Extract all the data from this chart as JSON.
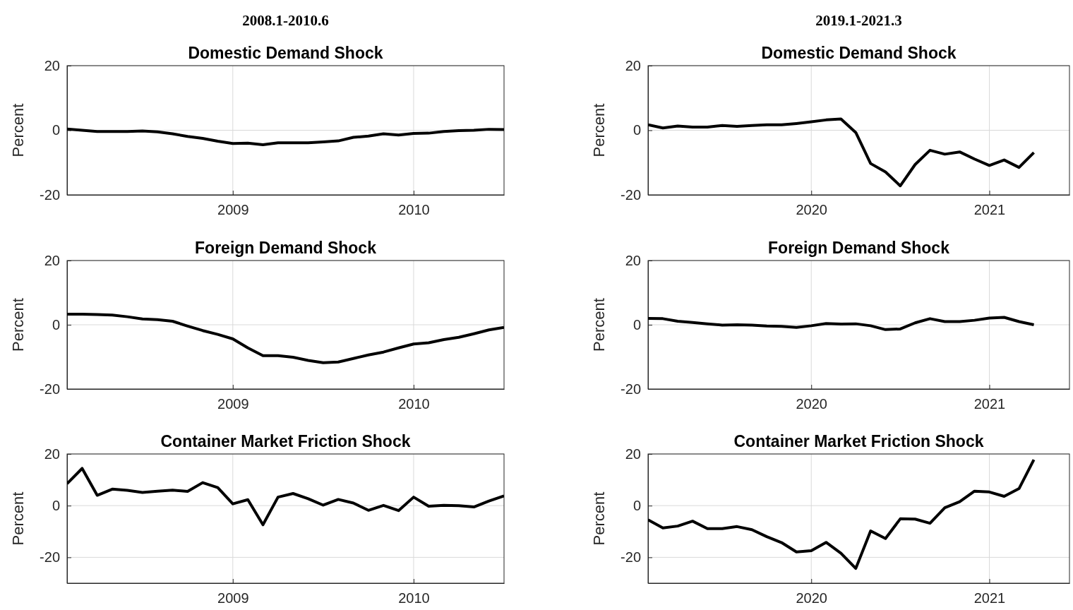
{
  "chart_data": [
    {
      "type": "line",
      "subtitle": "2008.1-2010.6",
      "title": "Domestic Demand Shock",
      "ylabel": "Percent",
      "x": [
        2008.0833,
        2008.1667,
        2008.25,
        2008.3333,
        2008.4167,
        2008.5,
        2008.5833,
        2008.6667,
        2008.75,
        2008.8333,
        2008.9167,
        2009,
        2009.0833,
        2009.1667,
        2009.25,
        2009.3333,
        2009.4167,
        2009.5,
        2009.5833,
        2009.6667,
        2009.75,
        2009.8333,
        2009.9167,
        2010,
        2010.0833,
        2010.1667,
        2010.25,
        2010.3333,
        2010.4167,
        2010.5
      ],
      "xlim": [
        2008.0833,
        2010.5
      ],
      "xticks": [
        2009,
        2010
      ],
      "ylim": [
        -20,
        20
      ],
      "yticks": [
        -20,
        0,
        20
      ],
      "grid": true,
      "series": [
        {
          "color": "#000000",
          "values": [
            0.4,
            0,
            -0.4,
            -0.4,
            -0.4,
            -0.2,
            -0.5,
            -1.1,
            -1.9,
            -2.5,
            -3.4,
            -4.1,
            -4.0,
            -4.5,
            -3.9,
            -3.9,
            -3.9,
            -3.6,
            -3.3,
            -2.2,
            -1.8,
            -1.1,
            -1.5,
            -1.0,
            -0.9,
            -0.4,
            -0.1,
            0,
            0.3,
            0.2
          ]
        }
      ]
    },
    {
      "type": "line",
      "subtitle": "2019.1-2021.3",
      "title": "Domestic Demand Shock",
      "ylabel": "Percent",
      "x": [
        2019.0833,
        2019.1667,
        2019.25,
        2019.3333,
        2019.4167,
        2019.5,
        2019.5833,
        2019.6667,
        2019.75,
        2019.8333,
        2019.9167,
        2020,
        2020.0833,
        2020.1667,
        2020.25,
        2020.3333,
        2020.4167,
        2020.5,
        2020.5833,
        2020.6667,
        2020.75,
        2020.8333,
        2020.9167,
        2021,
        2021.0833,
        2021.1667,
        2021.25
      ],
      "xlim": [
        2019.0833,
        2021.45
      ],
      "xticks": [
        2020,
        2021
      ],
      "ylim": [
        -20,
        20
      ],
      "yticks": [
        -20,
        0,
        20
      ],
      "grid": true,
      "series": [
        {
          "color": "#000000",
          "values": [
            1.7,
            0.7,
            1.3,
            1.0,
            1.0,
            1.5,
            1.2,
            1.5,
            1.7,
            1.7,
            2.1,
            2.6,
            3.2,
            3.5,
            -0.7,
            -10.3,
            -12.9,
            -17.2,
            -10.6,
            -6.2,
            -7.4,
            -6.7,
            -8.9,
            -10.9,
            -9.2,
            -11.5,
            -6.9
          ]
        }
      ]
    },
    {
      "type": "line",
      "title": "Foreign Demand Shock",
      "ylabel": "Percent",
      "x": [
        2008.0833,
        2008.1667,
        2008.25,
        2008.3333,
        2008.4167,
        2008.5,
        2008.5833,
        2008.6667,
        2008.75,
        2008.8333,
        2008.9167,
        2009,
        2009.0833,
        2009.1667,
        2009.25,
        2009.3333,
        2009.4167,
        2009.5,
        2009.5833,
        2009.6667,
        2009.75,
        2009.8333,
        2009.9167,
        2010,
        2010.0833,
        2010.1667,
        2010.25,
        2010.3333,
        2010.4167,
        2010.5
      ],
      "xlim": [
        2008.0833,
        2010.5
      ],
      "xticks": [
        2009,
        2010
      ],
      "ylim": [
        -20,
        20
      ],
      "yticks": [
        -20,
        0,
        20
      ],
      "grid": true,
      "series": [
        {
          "color": "#000000",
          "values": [
            3.3,
            3.3,
            3.2,
            3.0,
            2.5,
            1.8,
            1.6,
            1.1,
            -0.4,
            -1.8,
            -3.0,
            -4.4,
            -7.2,
            -9.6,
            -9.6,
            -10.1,
            -11.1,
            -11.8,
            -11.6,
            -10.5,
            -9.4,
            -8.5,
            -7.2,
            -6.0,
            -5.6,
            -4.6,
            -3.9,
            -2.8,
            -1.6,
            -0.8
          ]
        }
      ]
    },
    {
      "type": "line",
      "title": "Foreign Demand Shock",
      "ylabel": "Percent",
      "x": [
        2019.0833,
        2019.1667,
        2019.25,
        2019.3333,
        2019.4167,
        2019.5,
        2019.5833,
        2019.6667,
        2019.75,
        2019.8333,
        2019.9167,
        2020,
        2020.0833,
        2020.1667,
        2020.25,
        2020.3333,
        2020.4167,
        2020.5,
        2020.5833,
        2020.6667,
        2020.75,
        2020.8333,
        2020.9167,
        2021,
        2021.0833,
        2021.1667,
        2021.25
      ],
      "xlim": [
        2019.0833,
        2021.45
      ],
      "xticks": [
        2020,
        2021
      ],
      "ylim": [
        -20,
        20
      ],
      "yticks": [
        -20,
        0,
        20
      ],
      "grid": true,
      "series": [
        {
          "color": "#000000",
          "values": [
            2.0,
            1.9,
            1.1,
            0.7,
            0.3,
            -0.1,
            0,
            -0.1,
            -0.4,
            -0.5,
            -0.8,
            -0.3,
            0.4,
            0.2,
            0.3,
            -0.3,
            -1.5,
            -1.3,
            0.6,
            1.9,
            1.0,
            1.0,
            1.4,
            2.1,
            2.3,
            1.0,
            0
          ]
        }
      ]
    },
    {
      "type": "line",
      "title": "Container Market Friction Shock",
      "ylabel": "Percent",
      "x": [
        2008.0833,
        2008.1667,
        2008.25,
        2008.3333,
        2008.4167,
        2008.5,
        2008.5833,
        2008.6667,
        2008.75,
        2008.8333,
        2008.9167,
        2009,
        2009.0833,
        2009.1667,
        2009.25,
        2009.3333,
        2009.4167,
        2009.5,
        2009.5833,
        2009.6667,
        2009.75,
        2009.8333,
        2009.9167,
        2010,
        2010.0833,
        2010.1667,
        2010.25,
        2010.3333,
        2010.4167,
        2010.5
      ],
      "xlim": [
        2008.0833,
        2010.5
      ],
      "xticks": [
        2009,
        2010
      ],
      "ylim": [
        -30,
        20
      ],
      "yticks": [
        -20,
        0,
        20
      ],
      "grid": true,
      "series": [
        {
          "color": "#000000",
          "values": [
            8.5,
            14.4,
            4.0,
            6.4,
            5.9,
            5.1,
            5.6,
            6.0,
            5.5,
            8.9,
            7.0,
            0.7,
            2.3,
            -7.4,
            3.3,
            4.7,
            2.7,
            0.2,
            2.4,
            1.0,
            -1.8,
            0.1,
            -1.9,
            3.3,
            -0.2,
            0.1,
            0,
            -0.5,
            1.8,
            3.8
          ]
        }
      ]
    },
    {
      "type": "line",
      "title": "Container Market Friction Shock",
      "ylabel": "Percent",
      "x": [
        2019.0833,
        2019.1667,
        2019.25,
        2019.3333,
        2019.4167,
        2019.5,
        2019.5833,
        2019.6667,
        2019.75,
        2019.8333,
        2019.9167,
        2020,
        2020.0833,
        2020.1667,
        2020.25,
        2020.3333,
        2020.4167,
        2020.5,
        2020.5833,
        2020.6667,
        2020.75,
        2020.8333,
        2020.9167,
        2021,
        2021.0833,
        2021.1667,
        2021.25
      ],
      "xlim": [
        2019.0833,
        2021.45
      ],
      "xticks": [
        2020,
        2021
      ],
      "ylim": [
        -30,
        20
      ],
      "yticks": [
        -20,
        0,
        20
      ],
      "grid": true,
      "series": [
        {
          "color": "#000000",
          "values": [
            -5.5,
            -8.6,
            -7.9,
            -6.0,
            -8.9,
            -8.9,
            -8.1,
            -9.3,
            -12.0,
            -14.3,
            -17.9,
            -17.4,
            -14.2,
            -18.4,
            -24.3,
            -9.8,
            -12.7,
            -5.1,
            -5.2,
            -6.8,
            -0.8,
            1.5,
            5.6,
            5.3,
            3.6,
            6.6,
            17.8
          ]
        }
      ]
    }
  ]
}
